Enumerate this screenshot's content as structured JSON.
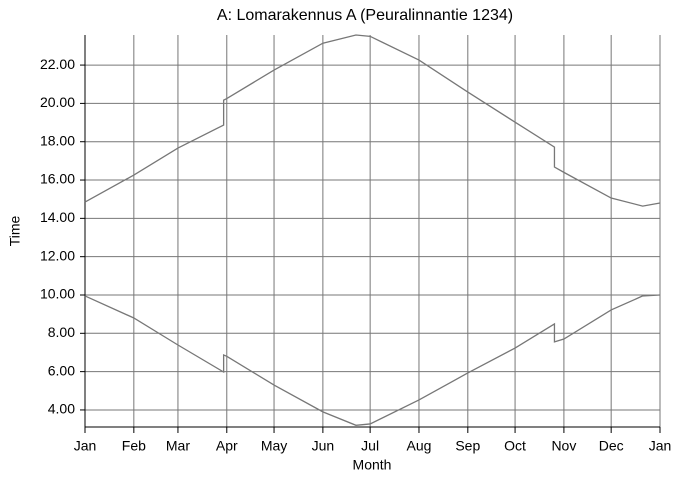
{
  "chart_data": {
    "type": "line",
    "title": "A: Lomarakennus A (Peuralinnantie 1234)",
    "xlabel": "Month",
    "ylabel": "Time",
    "x": [
      0,
      31,
      59,
      88,
      88,
      90,
      120,
      151,
      172,
      181,
      212,
      243,
      273,
      298,
      298,
      304,
      334,
      354,
      365
    ],
    "series": [
      {
        "color": "#777777",
        "values": [
          14.85,
          16.26,
          17.67,
          18.87,
          20.17,
          20.25,
          21.74,
          23.14,
          23.57,
          23.5,
          22.26,
          20.59,
          19.02,
          17.72,
          16.68,
          16.4,
          15.06,
          14.64,
          14.8
        ]
      },
      {
        "color": "#777777",
        "values": [
          9.95,
          8.8,
          7.39,
          5.98,
          6.87,
          6.8,
          5.3,
          3.9,
          3.2,
          3.27,
          4.52,
          5.93,
          7.23,
          8.49,
          7.55,
          7.7,
          9.22,
          9.95,
          10.0
        ]
      }
    ],
    "xlim": [
      0,
      365
    ],
    "xticks": [
      {
        "value": 0,
        "label": "Jan"
      },
      {
        "value": 31,
        "label": "Feb"
      },
      {
        "value": 59,
        "label": "Mar"
      },
      {
        "value": 90,
        "label": "Apr"
      },
      {
        "value": 120,
        "label": "May"
      },
      {
        "value": 151,
        "label": "Jun"
      },
      {
        "value": 181,
        "label": "Jul"
      },
      {
        "value": 212,
        "label": "Aug"
      },
      {
        "value": 243,
        "label": "Sep"
      },
      {
        "value": 273,
        "label": "Oct"
      },
      {
        "value": 304,
        "label": "Nov"
      },
      {
        "value": 334,
        "label": "Dec"
      },
      {
        "value": 365,
        "label": "Jan"
      }
    ],
    "ylim": [
      3.11,
      23.57
    ],
    "yticks": [
      {
        "value": 4,
        "label": "4.00"
      },
      {
        "value": 6,
        "label": "6.00"
      },
      {
        "value": 8,
        "label": "8.00"
      },
      {
        "value": 10,
        "label": "10.00"
      },
      {
        "value": 12,
        "label": "12.00"
      },
      {
        "value": 14,
        "label": "14.00"
      },
      {
        "value": 16,
        "label": "16.00"
      },
      {
        "value": 18,
        "label": "18.00"
      },
      {
        "value": 20,
        "label": "20.00"
      },
      {
        "value": 22,
        "label": "22.00"
      }
    ],
    "grid": true
  }
}
